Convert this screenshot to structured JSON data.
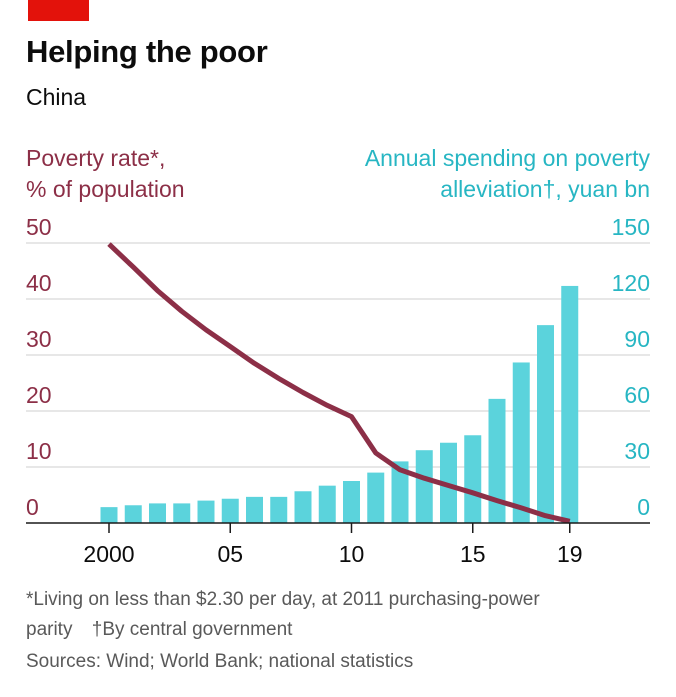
{
  "header": {
    "title": "Helping the poor",
    "subtitle": "China"
  },
  "colors": {
    "brand_tab": "#e3120b",
    "poverty": "#8c2f47",
    "spending": "#5bd3dc",
    "grid": "#cfcfcf",
    "axis": "#1a1a1a"
  },
  "chart_data": {
    "type": "bar+line",
    "title": "Helping the poor",
    "subtitle": "China",
    "x_tick_labels": [
      "2000",
      "05",
      "10",
      "15",
      "19"
    ],
    "x_tick_years": [
      2000,
      2005,
      2010,
      2015,
      2019
    ],
    "left_axis": {
      "label_line1": "Poverty rate*,",
      "label_line2": "% of population",
      "ticks": [
        0,
        10,
        20,
        30,
        40,
        50
      ],
      "range": [
        0,
        50
      ]
    },
    "right_axis": {
      "label_line1": "Annual spending on poverty",
      "label_line2": "alleviation†, yuan bn",
      "ticks": [
        0,
        30,
        60,
        90,
        120,
        150
      ],
      "range": [
        0,
        150
      ]
    },
    "bars": {
      "axis": "right",
      "years": [
        2000,
        2001,
        2002,
        2003,
        2004,
        2005,
        2006,
        2007,
        2008,
        2009,
        2010,
        2011,
        2012,
        2013,
        2014,
        2015,
        2016,
        2017,
        2018,
        2019
      ],
      "values": [
        8.5,
        9.5,
        10.5,
        10.5,
        12,
        13,
        14,
        14,
        17,
        20,
        22.5,
        27,
        33,
        39,
        43,
        47,
        66.5,
        86,
        106,
        127
      ]
    },
    "line": {
      "axis": "left",
      "years": [
        2000,
        2001,
        2002,
        2003,
        2004,
        2005,
        2006,
        2007,
        2008,
        2009,
        2010,
        2011,
        2012,
        2013,
        2014,
        2015,
        2016,
        2017,
        2018,
        2019
      ],
      "values": [
        49.8,
        45.7,
        41.5,
        37.8,
        34.5,
        31.5,
        28.5,
        25.8,
        23.3,
        21.0,
        19.0,
        12.5,
        9.5,
        8.0,
        6.7,
        5.4,
        4.0,
        2.7,
        1.3,
        0.3
      ]
    }
  },
  "footnotes": {
    "line1": "*Living on less than $2.30 per day, at 2011 purchasing-power",
    "line2a": "parity",
    "line2b": "†By central government",
    "sources": "Sources: Wind; World Bank; national statistics"
  }
}
